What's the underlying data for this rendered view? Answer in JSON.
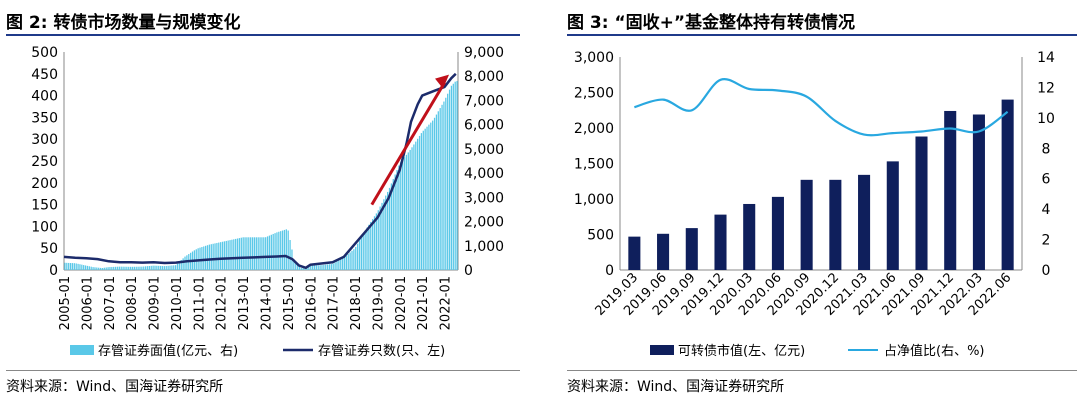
{
  "left": {
    "title": "图 2:  转债市场数量与规模变化",
    "source": "资料来源：Wind、国海证券研究所"
  },
  "right": {
    "title": "图 3: “固收+”基金整体持有转债情况",
    "source": "资料来源：Wind、国海证券研究所"
  },
  "chart_data": [
    {
      "type": "bar+line",
      "title": "转债市场数量与规模变化",
      "x_ticks": [
        "2005-01",
        "2006-01",
        "2007-01",
        "2008-01",
        "2009-01",
        "2010-01",
        "2011-01",
        "2012-01",
        "2013-01",
        "2014-01",
        "2015-01",
        "2016-01",
        "2017-01",
        "2018-01",
        "2019-01",
        "2020-01",
        "2021-01",
        "2022-01"
      ],
      "left_axis": {
        "ylim": [
          0,
          500
        ],
        "ticks": [
          "0",
          "50",
          "100",
          "150",
          "200",
          "250",
          "300",
          "350",
          "400",
          "450",
          "500"
        ]
      },
      "right_axis": {
        "ylim": [
          0,
          9000
        ],
        "ticks": [
          "0",
          "1,000",
          "2,000",
          "3,000",
          "4,000",
          "5,000",
          "6,000",
          "7,000",
          "8,000",
          "9,000"
        ]
      },
      "series": [
        {
          "name": "存管证券面值(亿元、右)",
          "type": "bar",
          "axis": "right",
          "color": "#5ac8e8",
          "t": [
            2005.0,
            2005.5,
            2006.0,
            2006.3,
            2006.7,
            2007.0,
            2007.5,
            2008.0,
            2008.5,
            2009.0,
            2009.5,
            2010.0,
            2010.4,
            2010.8,
            2011.0,
            2011.5,
            2012.0,
            2012.5,
            2013.0,
            2013.5,
            2014.0,
            2014.5,
            2015.0,
            2015.3,
            2015.6,
            2016.0,
            2016.5,
            2017.0,
            2017.5,
            2018.0,
            2018.5,
            2019.0,
            2019.5,
            2020.0,
            2020.5,
            2021.0,
            2021.5,
            2022.0,
            2022.3,
            2022.5
          ],
          "values": [
            300,
            280,
            180,
            120,
            80,
            120,
            140,
            130,
            140,
            180,
            160,
            200,
            550,
            800,
            900,
            1050,
            1150,
            1250,
            1350,
            1350,
            1350,
            1550,
            1700,
            300,
            80,
            180,
            200,
            250,
            500,
            900,
            1700,
            2400,
            3300,
            4400,
            5000,
            5700,
            6200,
            7000,
            7600,
            7800
          ]
        },
        {
          "name": "存管证券只数(只、左)",
          "type": "line",
          "axis": "left",
          "color": "#1c2b6b",
          "t": [
            2005.0,
            2005.5,
            2006.0,
            2006.5,
            2007.0,
            2007.5,
            2008.0,
            2008.5,
            2009.0,
            2009.5,
            2010.0,
            2010.5,
            2011.0,
            2011.5,
            2012.0,
            2012.5,
            2013.0,
            2013.5,
            2014.0,
            2014.5,
            2014.9,
            2015.2,
            2015.5,
            2015.8,
            2016.0,
            2016.5,
            2017.0,
            2017.5,
            2018.0,
            2018.5,
            2019.0,
            2019.5,
            2020.0,
            2020.3,
            2020.5,
            2020.8,
            2021.0,
            2021.5,
            2022.0,
            2022.3,
            2022.5
          ],
          "values": [
            30,
            28,
            27,
            25,
            20,
            18,
            18,
            17,
            18,
            16,
            17,
            20,
            22,
            24,
            26,
            27,
            28,
            29,
            30,
            31,
            32,
            25,
            10,
            5,
            12,
            15,
            18,
            30,
            60,
            90,
            120,
            165,
            230,
            290,
            340,
            380,
            400,
            410,
            420,
            440,
            450
          ]
        }
      ],
      "annotation": "red trend arrow rising from 2018 to 2022",
      "legend": [
        "存管证券面值(亿元、右)",
        "存管证券只数(只、左)"
      ]
    },
    {
      "type": "bar+line",
      "title": "“固收+”基金整体持有转债情况",
      "categories": [
        "2019.03",
        "2019.06",
        "2019.09",
        "2019.12",
        "2020.03",
        "2020.06",
        "2020.09",
        "2020.12",
        "2021.03",
        "2021.06",
        "2021.09",
        "2021.12",
        "2022.03",
        "2022.06"
      ],
      "left_axis": {
        "ylim": [
          0,
          3000
        ],
        "ticks": [
          "0",
          "500",
          "1,000",
          "1,500",
          "2,000",
          "2,500",
          "3,000"
        ]
      },
      "right_axis": {
        "ylim": [
          0,
          14
        ],
        "ticks": [
          "0",
          "2",
          "4",
          "6",
          "8",
          "10",
          "12",
          "14"
        ]
      },
      "series": [
        {
          "name": "可转债市值(左、亿元)",
          "type": "bar",
          "axis": "left",
          "color": "#0f1f5c",
          "values": [
            470,
            510,
            590,
            780,
            930,
            1030,
            1270,
            1270,
            1340,
            1530,
            1880,
            2240,
            2190,
            2400
          ]
        },
        {
          "name": "占净值比(右、%)",
          "type": "line",
          "axis": "right",
          "color": "#29a8e0",
          "values": [
            10.7,
            11.2,
            10.5,
            12.5,
            11.9,
            11.8,
            11.4,
            9.8,
            8.9,
            9.0,
            9.1,
            9.3,
            9.1,
            10.4
          ]
        }
      ],
      "legend": [
        "可转债市值(左、亿元)",
        "占净值比(右、%)"
      ]
    }
  ]
}
